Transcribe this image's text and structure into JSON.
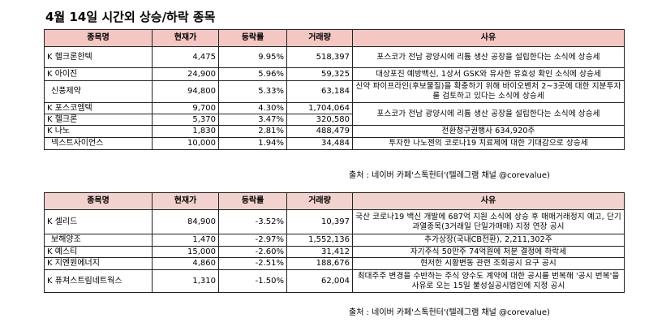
{
  "title": "4월 14일  시간외 상승/하락 종목",
  "headers": [
    "종목명",
    "현재가",
    "등락률",
    "거래량",
    "사유"
  ],
  "rising": [
    {
      "name": "K 헬크론한텍",
      "price": "4,475",
      "change": "9.95%",
      "volume": "518,397",
      "reason": "포스코가 전남 광양시에 리튬 생산 공장을 설립한다는 소식에 상승세"
    },
    {
      "name": "K 아이진",
      "price": "24,900",
      "change": "5.96%",
      "volume": "59,325",
      "reason": "대상포진 예방백신, 1상서 GSK와 유사한 유효성 확인 소식에 상승세"
    },
    {
      "name": "신풍제약",
      "price": "94,800",
      "change": "5.33%",
      "volume": "63,184",
      "reason": "신약 파이프라인(후보물질)을 확충하기 위해 바이오벤처 2~3곳에 대한 지분투자를 검토하고 있다는 소식에 상승세"
    },
    {
      "name": "K 포스코엠텍",
      "price": "9,700",
      "change": "4.30%",
      "volume": "1,704,064",
      "reason": "포스코가 전남 광양시에 리튬 생산 공장을 설립한다는 소식에 상승세"
    },
    {
      "name": "K 헬크론",
      "price": "5,370",
      "change": "3.47%",
      "volume": "320,580",
      "reason": ""
    },
    {
      "name": "K 나노",
      "price": "1,830",
      "change": "2.81%",
      "volume": "488,479",
      "reason": "전환청구권행사 634,920주"
    },
    {
      "name": "넥스트사이언스",
      "price": "10,000",
      "change": "1.94%",
      "volume": "34,484",
      "reason": "투자한 나노젠의 코로나19 치료제에 대한 기대감으로 상승세"
    }
  ],
  "source1": "출처 : 네이버 카페'스톡헌터'(텔레그램 채널 @corevalue)",
  "falling": [
    {
      "name": "K 셀리드",
      "price": "84,900",
      "change": "-3.52%",
      "volume": "10,397",
      "reason": "국산 코로나19 백신 개발에 687억 지원 소식에 상승 후 매매거래정지 예고, 단기과열종목(3거래일 단일가매매) 지정 연장 공시"
    },
    {
      "name": "보해양조",
      "price": "1,470",
      "change": "-2.97%",
      "volume": "1,552,136",
      "reason": "추가상장(국내CB전환), 2,211,302주"
    },
    {
      "name": "K 예스티",
      "price": "15,000",
      "change": "-2.60%",
      "volume": "31,412",
      "reason": "자기주식 50만주 74억원에 처분 결정에 하락세"
    },
    {
      "name": "K 지엔원에너지",
      "price": "4,860",
      "change": "-2.51%",
      "volume": "188,676",
      "reason": "현저한 시황변동 관련 조회공시 요구 공시"
    },
    {
      "name": "K 퓨쳐스트림네트웍스",
      "price": "1,310",
      "change": "-1.50%",
      "volume": "62,004",
      "reason": "최대주주 변경을 수반하는 주식 양수도 계약에 대한 공시를 번복해 '공시 번복'을 사유로 오는 15일 불성실공시법인에 지정 공시"
    }
  ],
  "source2": "출처 : 네이버 카페'스톡헌터'(텔레그램 채널 @corevalue)"
}
